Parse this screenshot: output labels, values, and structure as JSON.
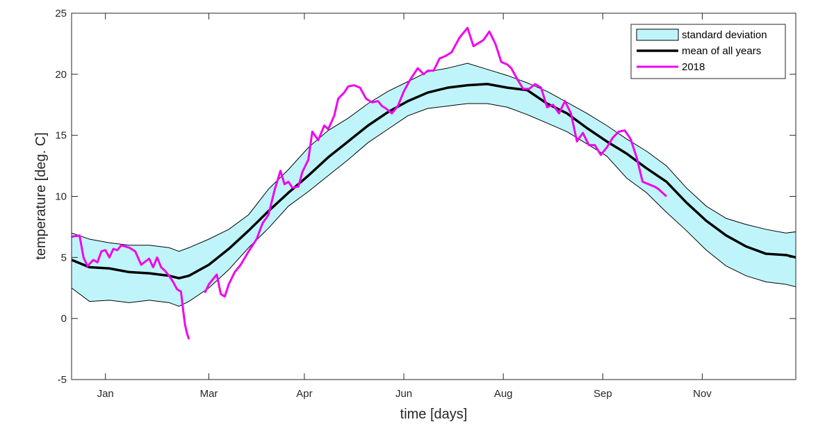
{
  "chart_data": {
    "type": "line",
    "xlabel": "time [days]",
    "ylabel": "temperature [deg. C]",
    "xlim": [
      1,
      365
    ],
    "ylim": [
      -5,
      25
    ],
    "y_ticks": [
      -5,
      0,
      5,
      10,
      15,
      20,
      25
    ],
    "x_ticks": [
      {
        "day": 18,
        "label": "Jan"
      },
      {
        "day": 70,
        "label": "Mar"
      },
      {
        "day": 118,
        "label": "Apr"
      },
      {
        "day": 168,
        "label": "Jun"
      },
      {
        "day": 218,
        "label": "Aug"
      },
      {
        "day": 268,
        "label": "Sep"
      },
      {
        "day": 318,
        "label": "Nov"
      }
    ],
    "grid": false,
    "legend_position": "top-right",
    "colors": {
      "band_fill": "#bff5fa",
      "band_edge": "#000000",
      "mean": "#000000",
      "year2018": "#f000f0"
    },
    "series": [
      {
        "name": "standard deviation",
        "kind": "band",
        "x": [
          1,
          10,
          20,
          30,
          40,
          50,
          55,
          60,
          70,
          80,
          90,
          100,
          110,
          120,
          130,
          140,
          150,
          160,
          170,
          180,
          190,
          200,
          210,
          220,
          230,
          240,
          250,
          260,
          270,
          280,
          290,
          300,
          310,
          320,
          330,
          340,
          350,
          360,
          365
        ],
        "lower": [
          2.5,
          1.4,
          1.5,
          1.3,
          1.5,
          1.3,
          1.0,
          1.4,
          2.5,
          4.0,
          5.8,
          7.4,
          9.2,
          10.4,
          11.7,
          13.0,
          14.4,
          15.5,
          16.6,
          17.2,
          17.4,
          17.6,
          17.6,
          17.3,
          16.7,
          16.0,
          15.3,
          14.3,
          13.3,
          11.5,
          10.3,
          8.7,
          7.2,
          5.6,
          4.3,
          3.5,
          3.0,
          2.8,
          2.6
        ],
        "upper": [
          7.0,
          6.5,
          6.2,
          6.0,
          6.0,
          5.8,
          5.5,
          5.8,
          6.5,
          7.3,
          8.5,
          10.6,
          12.2,
          14.0,
          15.4,
          16.4,
          17.6,
          18.6,
          19.4,
          20.2,
          20.5,
          20.9,
          20.4,
          19.9,
          19.3,
          18.6,
          17.7,
          16.8,
          15.8,
          14.7,
          13.7,
          12.5,
          10.7,
          9.2,
          8.2,
          7.7,
          7.3,
          7.0,
          7.1
        ]
      },
      {
        "name": "mean of all years",
        "kind": "line",
        "x": [
          1,
          10,
          20,
          30,
          40,
          50,
          55,
          60,
          70,
          80,
          90,
          100,
          110,
          120,
          130,
          140,
          150,
          160,
          170,
          180,
          190,
          200,
          210,
          220,
          230,
          240,
          250,
          260,
          270,
          280,
          290,
          300,
          310,
          320,
          330,
          340,
          350,
          360,
          365
        ],
        "y": [
          4.8,
          4.2,
          4.1,
          3.8,
          3.7,
          3.5,
          3.3,
          3.5,
          4.4,
          5.7,
          7.2,
          8.8,
          10.3,
          11.7,
          13.2,
          14.5,
          15.8,
          16.9,
          17.8,
          18.5,
          18.9,
          19.1,
          19.2,
          18.9,
          18.7,
          17.6,
          16.8,
          15.6,
          14.5,
          13.5,
          12.3,
          11.2,
          9.5,
          8.0,
          6.8,
          5.9,
          5.3,
          5.2,
          5.0
        ]
      },
      {
        "name": "2018",
        "kind": "line",
        "segments": [
          {
            "x": [
              1,
              5,
              7,
              9,
              12,
              14,
              16,
              18,
              20,
              22,
              24,
              26,
              28,
              30,
              33,
              36,
              40,
              42,
              44,
              46,
              48,
              50,
              52,
              54,
              56,
              57,
              58,
              59,
              60
            ],
            "y": [
              6.7,
              6.8,
              5.0,
              4.3,
              4.8,
              4.6,
              5.5,
              5.6,
              5.0,
              5.7,
              5.6,
              6.0,
              5.9,
              5.8,
              5.5,
              4.4,
              4.9,
              4.2,
              5.0,
              4.2,
              3.9,
              3.5,
              3.0,
              2.4,
              2.2,
              0.8,
              -0.5,
              -1.2,
              -1.7
            ]
          },
          {
            "x": [
              68,
              70,
              72,
              74,
              76,
              78,
              80,
              83,
              86,
              90,
              94,
              97,
              100,
              103,
              106,
              108,
              110,
              112,
              115,
              117,
              120,
              122,
              125,
              128,
              130,
              133,
              135,
              138,
              140,
              143,
              146,
              149,
              152,
              155,
              157,
              159,
              162,
              165,
              168,
              171,
              175,
              178,
              180,
              183,
              186,
              189,
              192,
              196,
              200,
              203,
              205,
              208,
              211,
              214,
              217,
              220,
              222,
              225,
              228,
              231,
              234,
              237,
              240,
              243,
              246,
              249,
              252,
              255,
              258,
              261,
              264,
              267,
              270,
              273,
              276,
              279,
              282,
              285,
              288,
              291,
              294,
              296,
              298,
              300
            ],
            "y": [
              2.1,
              2.8,
              3.2,
              3.6,
              2.0,
              1.8,
              2.8,
              3.8,
              4.4,
              5.5,
              6.5,
              7.8,
              8.5,
              10.5,
              12.1,
              11.0,
              11.2,
              10.7,
              10.8,
              12.0,
              13.0,
              15.3,
              14.6,
              15.8,
              15.5,
              16.6,
              18.0,
              18.5,
              19.0,
              19.1,
              18.9,
              18.0,
              17.7,
              17.8,
              17.4,
              17.2,
              16.8,
              17.4,
              18.6,
              19.5,
              20.5,
              20.0,
              20.3,
              20.3,
              21.3,
              21.5,
              21.8,
              23.0,
              23.8,
              22.3,
              22.5,
              22.8,
              23.5,
              22.5,
              21.0,
              20.8,
              20.5,
              19.6,
              18.8,
              18.8,
              19.2,
              18.9,
              17.3,
              17.5,
              16.8,
              17.8,
              16.8,
              14.5,
              15.2,
              14.2,
              14.2,
              13.4,
              14.0,
              14.8,
              15.3,
              15.4,
              14.7,
              13.2,
              11.2,
              11.0,
              10.8,
              10.6,
              10.3,
              10.0
            ]
          }
        ]
      }
    ],
    "legend": [
      "standard deviation",
      "mean of all years",
      "2018"
    ]
  }
}
